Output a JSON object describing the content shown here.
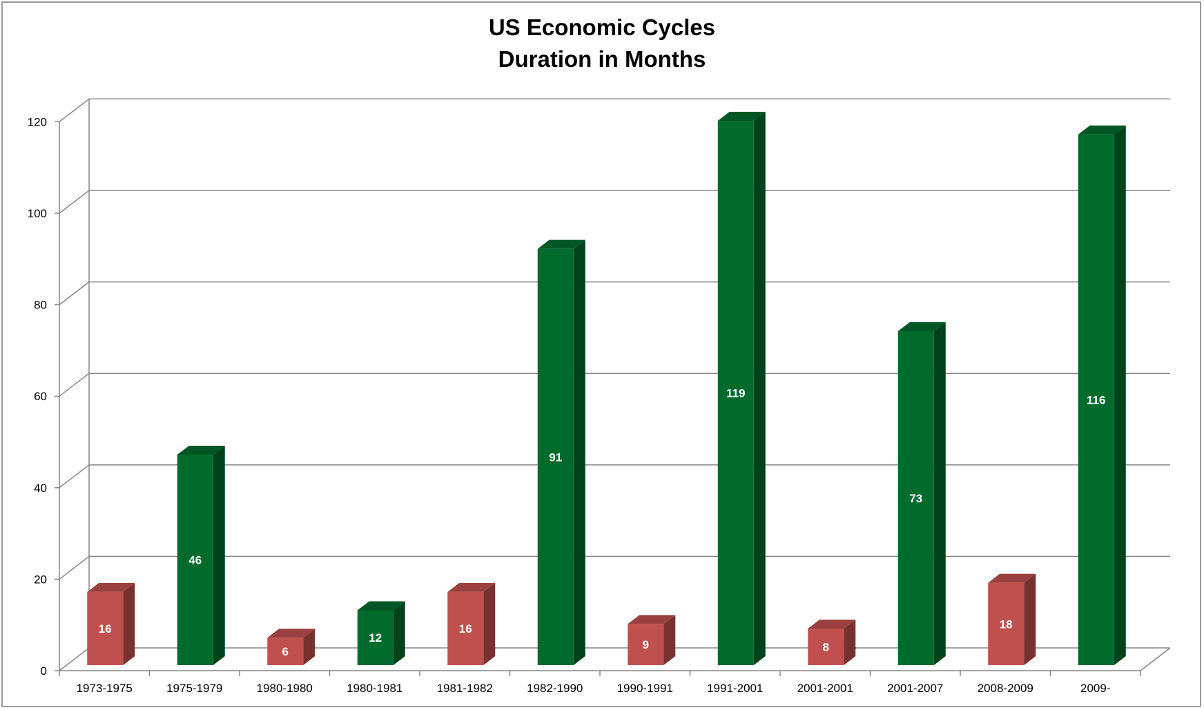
{
  "chart_data": {
    "type": "bar",
    "title": "US Economic Cycles",
    "subtitle": "Duration in Months",
    "xlabel": "",
    "ylabel": "",
    "ylim": [
      0,
      120
    ],
    "yticks": [
      0,
      20,
      40,
      60,
      80,
      100,
      120
    ],
    "grid": true,
    "legend": "none",
    "style": "3d-column",
    "categories": [
      "1973-1975",
      "1975-1979",
      "1980-1980",
      "1980-1981",
      "1981-1982",
      "1982-1990",
      "1990-1991",
      "1991-2001",
      "2001-2001",
      "2001-2007",
      "2008-2009",
      "2009-"
    ],
    "values": [
      16,
      46,
      6,
      12,
      16,
      91,
      9,
      119,
      8,
      73,
      18,
      116
    ],
    "data_labels": [
      "16",
      "46",
      "6",
      "12",
      "16",
      "91",
      "9",
      "119",
      "8",
      "73",
      "18",
      "116"
    ],
    "bar_colors": [
      "#c0504d",
      "#006b2d",
      "#c0504d",
      "#006b2d",
      "#c0504d",
      "#006b2d",
      "#c0504d",
      "#006b2d",
      "#c0504d",
      "#006b2d",
      "#c0504d",
      "#006b2d"
    ],
    "colors": {
      "contraction": "#c0504d",
      "expansion": "#006b2d",
      "gridline": "#868686"
    }
  }
}
